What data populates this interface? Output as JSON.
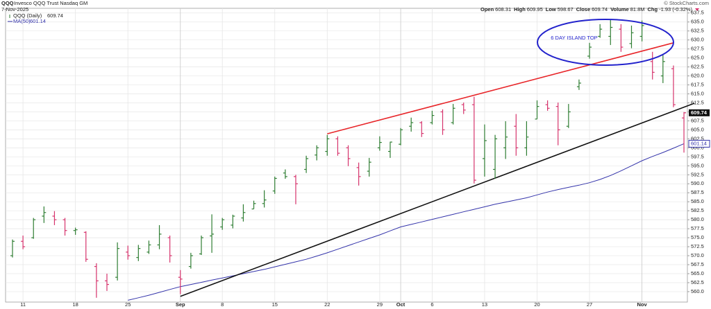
{
  "chart_data": {
    "type": "ohlc",
    "title": "QQQ",
    "subtitle": "Invesco QQQ Trust Nasdaq GM",
    "date": "7-Nov-2025",
    "copyright": "© StockCharts.com",
    "series_label": "QQQ (Daily)",
    "quote": {
      "open_label": "Open",
      "high_label": "High",
      "low_label": "Low",
      "close_label": "Close",
      "volume_label": "Volume",
      "volume": "81.8M",
      "change_label": "Chg",
      "change": "-1.93 (-0.32%)"
    },
    "annotation": "6 DAY ISLAND TOP",
    "up_color": "#2e7d32",
    "down_color": "#d6336c",
    "categories": [
      null,
      "11",
      null,
      null,
      null,
      null,
      "18",
      null,
      null,
      null,
      null,
      "25",
      null,
      null,
      null,
      null,
      "Sep",
      null,
      null,
      null,
      "8",
      null,
      null,
      null,
      null,
      "15",
      null,
      null,
      null,
      null,
      "22",
      null,
      null,
      null,
      null,
      "29",
      null,
      "Oct",
      null,
      null,
      "6",
      null,
      null,
      null,
      null,
      "13",
      null,
      null,
      null,
      null,
      "20",
      null,
      null,
      null,
      null,
      "27",
      null,
      null,
      null,
      null,
      "Nov",
      null,
      null,
      null,
      null
    ],
    "open": [
      570,
      574,
      575,
      581,
      581,
      580,
      577,
      576.5,
      567,
      563,
      564,
      571,
      569.5,
      571,
      573,
      575,
      564,
      567,
      570.5,
      575.5,
      578,
      578.5,
      580.5,
      583,
      584.5,
      588,
      593,
      592,
      594,
      598,
      599,
      602.5,
      600,
      594.5,
      593.5,
      600,
      599,
      601,
      606,
      607,
      607,
      610,
      607,
      612,
      612,
      597,
      594,
      600,
      606,
      600,
      608,
      612,
      611.5,
      606,
      617,
      625.5,
      631,
      631,
      633,
      629,
      631,
      624,
      620,
      622,
      608.31
    ],
    "high": [
      574.5,
      575.6,
      580.5,
      583.7,
      582.4,
      580.5,
      577.8,
      576.8,
      567.9,
      565,
      573.7,
      572.8,
      573,
      574.2,
      578.5,
      575.6,
      566,
      570.8,
      575.6,
      581.5,
      580.5,
      581.4,
      584.3,
      585.3,
      588.2,
      592,
      594,
      592.5,
      597.8,
      600.7,
      603.6,
      603.2,
      600.7,
      595.9,
      597.2,
      603.2,
      601.7,
      605.5,
      608.4,
      607.4,
      610.3,
      610.7,
      612.2,
      612.6,
      614.2,
      606.5,
      603.6,
      607.4,
      609.4,
      607.4,
      613.2,
      613.2,
      612.6,
      612.2,
      619,
      629.2,
      634.4,
      635.8,
      634.4,
      634,
      635.4,
      626.7,
      626.1,
      622.9,
      609.95
    ],
    "low": [
      569.5,
      571.8,
      574.7,
      579.1,
      578.5,
      575.6,
      575.8,
      568.3,
      558.3,
      560.2,
      563.1,
      568.9,
      568.5,
      570.5,
      571.8,
      568.1,
      559.3,
      566.4,
      570.2,
      570.8,
      577.2,
      577.6,
      579.5,
      583,
      583.4,
      587.2,
      591.4,
      584.3,
      593,
      596.5,
      597.8,
      597.8,
      594.9,
      589.5,
      592,
      599.2,
      597.2,
      600.7,
      604.5,
      603,
      606.5,
      603.6,
      606.5,
      609.4,
      590.1,
      592,
      591.4,
      596.9,
      597.8,
      597.8,
      608,
      610.3,
      600.7,
      605.5,
      616.1,
      624.8,
      630.6,
      628.6,
      626.7,
      627.7,
      629.6,
      619,
      618,
      611.3,
      598.67
    ],
    "close": [
      574,
      572.5,
      580,
      582,
      580,
      577,
      577.2,
      569,
      563,
      562,
      572,
      570,
      572,
      573,
      576,
      570,
      563.5,
      570,
      575,
      576,
      580,
      581,
      582,
      584.5,
      585.5,
      591.5,
      592,
      590,
      597,
      600,
      602.5,
      598.5,
      597,
      592,
      596,
      601.5,
      601.6,
      605,
      607,
      604,
      609,
      605,
      611,
      610.5,
      591,
      602,
      602.5,
      603,
      600,
      603,
      611.5,
      611,
      605,
      610,
      618,
      628,
      633,
      633.5,
      628,
      632,
      634,
      621,
      624,
      612,
      609.74
    ],
    "ma": {
      "name": "MA(50)",
      "color": "#3333aa",
      "values": [
        null,
        null,
        null,
        null,
        null,
        null,
        null,
        null,
        null,
        null,
        null,
        557.6,
        558.3,
        559.0,
        559.8,
        560.6,
        561.4,
        562.0,
        562.6,
        563.2,
        563.8,
        564.4,
        565.0,
        565.6,
        566.2,
        566.9,
        567.6,
        568.3,
        569.0,
        569.9,
        570.8,
        571.8,
        572.8,
        573.8,
        574.8,
        575.8,
        576.9,
        578.0,
        578.7,
        579.4,
        580.1,
        580.8,
        581.5,
        582.2,
        582.9,
        583.6,
        584.3,
        584.9,
        585.5,
        586.1,
        586.9,
        587.7,
        588.4,
        589.0,
        589.6,
        590.3,
        591.2,
        592.3,
        593.6,
        595.0,
        596.4,
        597.6,
        598.7,
        599.9,
        601.14
      ]
    },
    "trendlines": [
      {
        "color": "#e8262a",
        "points": [
          [
            30,
            603.9
          ],
          [
            63,
            629.2
          ]
        ]
      },
      {
        "color": "#111111",
        "points": [
          [
            16,
            558.7
          ],
          [
            65,
            612.4
          ]
        ]
      }
    ],
    "ylim": [
      557.1,
      638.8
    ],
    "yticks": [
      {
        "value": 560,
        "label": "560.0"
      },
      562.5,
      {
        "value": 565,
        "label": "565.0"
      },
      567.5,
      {
        "value": 570,
        "label": "570.0"
      },
      572.5,
      {
        "value": 575,
        "label": "575.0"
      },
      577.5,
      {
        "value": 580,
        "label": "580.0"
      },
      582.5,
      {
        "value": 585,
        "label": "585.0"
      },
      587.5,
      {
        "value": 590,
        "label": "590.0"
      },
      592.5,
      {
        "value": 595,
        "label": "595.0"
      },
      597.5,
      {
        "value": 600,
        "label": "600.0"
      },
      602.5,
      {
        "value": 605,
        "label": "605.0"
      },
      607.5,
      {
        "value": 610,
        "label": "610.0"
      },
      612.5,
      {
        "value": 615,
        "label": "615.0"
      },
      617.5,
      {
        "value": 620,
        "label": "620.0"
      },
      622.5,
      {
        "value": 625,
        "label": "625.0"
      },
      627.5,
      {
        "value": 630,
        "label": "630.0"
      },
      632.5,
      {
        "value": 635,
        "label": "635.0"
      },
      637.5
    ],
    "grid": true
  }
}
